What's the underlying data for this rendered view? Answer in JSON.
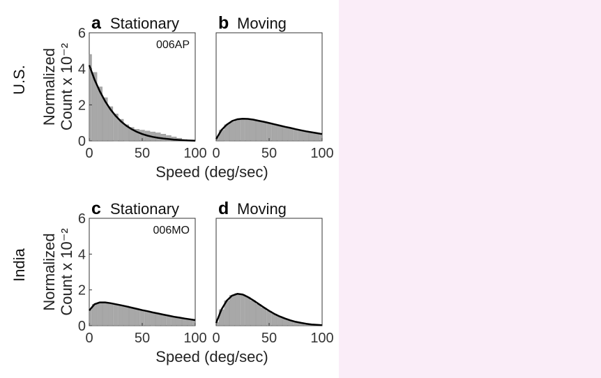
{
  "colors": {
    "background": "#ffffff",
    "right_panel": "#faedf8",
    "bar": "#9a9a9a",
    "curve": "#000000",
    "axis": "#333333"
  },
  "chart_data": [
    {
      "type": "bar",
      "panel_letter": "a",
      "title": "Stationary",
      "row_label": "U.S.",
      "subject_label": "006AP",
      "ylabel": "Normalized Count x 10⁻²",
      "xlabel": "Speed (deg/sec)",
      "xlim": [
        0,
        100
      ],
      "ylim": [
        0,
        6
      ],
      "xticks": [
        "0",
        "50",
        "100"
      ],
      "yticks": [
        "0",
        "2",
        "4",
        "6"
      ],
      "histogram": {
        "bin_centers": [
          0,
          5,
          10,
          15,
          20,
          25,
          30,
          35,
          40,
          45,
          50,
          55,
          60,
          65,
          70,
          75,
          80,
          85,
          90,
          95,
          100
        ],
        "values": [
          4.8,
          3.8,
          3.0,
          2.4,
          1.9,
          1.5,
          1.2,
          0.9,
          0.75,
          0.65,
          0.6,
          0.55,
          0.5,
          0.45,
          0.38,
          0.3,
          0.22,
          0.15,
          0.08,
          0.04,
          0.02
        ]
      },
      "fit": {
        "x": [
          0,
          5,
          10,
          15,
          20,
          25,
          30,
          35,
          40,
          45,
          50,
          55,
          60,
          65,
          70,
          75,
          80,
          85,
          90,
          95,
          100
        ],
        "y": [
          4.2,
          3.4,
          2.75,
          2.2,
          1.75,
          1.38,
          1.08,
          0.84,
          0.65,
          0.5,
          0.38,
          0.29,
          0.22,
          0.17,
          0.13,
          0.1,
          0.07,
          0.05,
          0.03,
          0.02,
          0.01
        ]
      }
    },
    {
      "type": "bar",
      "panel_letter": "b",
      "title": "Moving",
      "row_label": "",
      "subject_label": "",
      "ylabel": "",
      "xlabel": "",
      "xlim": [
        0,
        100
      ],
      "ylim": [
        0,
        6
      ],
      "xticks": [
        "0",
        "50",
        "100"
      ],
      "yticks": [],
      "histogram": {
        "bin_centers": [
          0,
          5,
          10,
          15,
          20,
          25,
          30,
          35,
          40,
          45,
          50,
          55,
          60,
          65,
          70,
          75,
          80,
          85,
          90,
          95,
          100
        ],
        "values": [
          0.2,
          0.6,
          0.9,
          1.05,
          1.15,
          1.2,
          1.2,
          1.15,
          1.12,
          1.05,
          0.98,
          0.92,
          0.85,
          0.78,
          0.72,
          0.65,
          0.58,
          0.52,
          0.47,
          0.42,
          0.38
        ]
      },
      "fit": {
        "x": [
          0,
          5,
          10,
          15,
          20,
          25,
          30,
          35,
          40,
          45,
          50,
          55,
          60,
          65,
          70,
          75,
          80,
          85,
          90,
          95,
          100
        ],
        "y": [
          0.1,
          0.6,
          0.9,
          1.1,
          1.2,
          1.23,
          1.22,
          1.18,
          1.12,
          1.06,
          0.99,
          0.92,
          0.85,
          0.78,
          0.72,
          0.65,
          0.59,
          0.53,
          0.48,
          0.43,
          0.38
        ]
      }
    },
    {
      "type": "bar",
      "panel_letter": "c",
      "title": "Stationary",
      "row_label": "India",
      "subject_label": "006MO",
      "ylabel": "Normalized Count x 10⁻²",
      "xlabel": "Speed (deg/sec)",
      "xlim": [
        0,
        100
      ],
      "ylim": [
        0,
        6
      ],
      "xticks": [
        "0",
        "50",
        "100"
      ],
      "yticks": [
        "0",
        "2",
        "4",
        "6"
      ],
      "histogram": {
        "bin_centers": [
          0,
          5,
          10,
          15,
          20,
          25,
          30,
          35,
          40,
          45,
          50,
          55,
          60,
          65,
          70,
          75,
          80,
          85,
          90,
          95,
          100
        ],
        "values": [
          0.9,
          1.2,
          1.3,
          1.3,
          1.25,
          1.2,
          1.15,
          1.1,
          1.02,
          0.95,
          0.88,
          0.82,
          0.75,
          0.68,
          0.62,
          0.56,
          0.5,
          0.45,
          0.4,
          0.35,
          0.3
        ]
      },
      "fit": {
        "x": [
          0,
          5,
          10,
          15,
          20,
          25,
          30,
          35,
          40,
          45,
          50,
          55,
          60,
          65,
          70,
          75,
          80,
          85,
          90,
          95,
          100
        ],
        "y": [
          0.85,
          1.2,
          1.3,
          1.3,
          1.26,
          1.2,
          1.14,
          1.08,
          1.01,
          0.94,
          0.87,
          0.81,
          0.74,
          0.68,
          0.62,
          0.56,
          0.5,
          0.45,
          0.4,
          0.36,
          0.31
        ]
      }
    },
    {
      "type": "bar",
      "panel_letter": "d",
      "title": "Moving",
      "row_label": "",
      "subject_label": "",
      "ylabel": "",
      "xlabel": "",
      "xlim": [
        0,
        100
      ],
      "ylim": [
        0,
        6
      ],
      "xticks": [
        "0",
        "50",
        "100"
      ],
      "yticks": [],
      "histogram": {
        "bin_centers": [
          0,
          5,
          10,
          15,
          20,
          25,
          30,
          35,
          40,
          45,
          50,
          55,
          60,
          65,
          70,
          75,
          80,
          85,
          90,
          95,
          100
        ],
        "values": [
          0.2,
          0.9,
          1.4,
          1.7,
          1.8,
          1.75,
          1.6,
          1.4,
          1.2,
          1.0,
          0.82,
          0.66,
          0.52,
          0.4,
          0.3,
          0.22,
          0.16,
          0.11,
          0.07,
          0.05,
          0.03
        ]
      },
      "fit": {
        "x": [
          0,
          5,
          10,
          15,
          20,
          25,
          30,
          35,
          40,
          45,
          50,
          55,
          60,
          65,
          70,
          75,
          80,
          85,
          90,
          95,
          100
        ],
        "y": [
          0.15,
          0.9,
          1.4,
          1.68,
          1.78,
          1.74,
          1.6,
          1.42,
          1.22,
          1.02,
          0.83,
          0.66,
          0.52,
          0.4,
          0.3,
          0.22,
          0.16,
          0.11,
          0.07,
          0.05,
          0.03
        ]
      }
    }
  ]
}
